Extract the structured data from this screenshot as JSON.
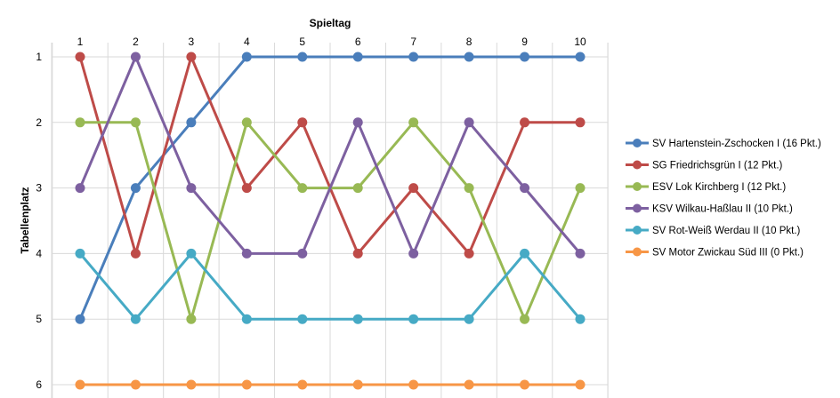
{
  "chart_data": {
    "type": "line",
    "xlabel": "Spieltag",
    "ylabel": "Tabellenplatz",
    "x": [
      1,
      2,
      3,
      4,
      5,
      6,
      7,
      8,
      9,
      10
    ],
    "xlim": [
      1,
      10
    ],
    "ylim": [
      1,
      6
    ],
    "y_reversed": true,
    "x_axis_position": "top",
    "grid": true,
    "legend_position": "right",
    "series": [
      {
        "name": "SV Hartenstein-Zschocken I (16 Pkt.)",
        "color": "#4A7EBB",
        "values": [
          5,
          3,
          2,
          1,
          1,
          1,
          1,
          1,
          1,
          1
        ]
      },
      {
        "name": "SG Friedrichsgrün I (12 Pkt.)",
        "color": "#BE4B48",
        "values": [
          1,
          4,
          1,
          3,
          2,
          4,
          3,
          4,
          2,
          2
        ]
      },
      {
        "name": "ESV Lok Kirchberg I (12 Pkt.)",
        "color": "#98B954",
        "values": [
          2,
          2,
          5,
          2,
          3,
          3,
          2,
          3,
          5,
          3
        ]
      },
      {
        "name": "KSV Wilkau-Haßlau II (10 Pkt.)",
        "color": "#7D60A0",
        "values": [
          3,
          1,
          3,
          4,
          4,
          2,
          4,
          2,
          3,
          4
        ]
      },
      {
        "name": "SV Rot-Weiß Werdau II (10 Pkt.)",
        "color": "#46AAC5",
        "values": [
          4,
          5,
          4,
          5,
          5,
          5,
          5,
          5,
          4,
          5
        ]
      },
      {
        "name": "SV Motor Zwickau Süd III (0 Pkt.)",
        "color": "#F79646",
        "values": [
          6,
          6,
          6,
          6,
          6,
          6,
          6,
          6,
          6,
          6
        ]
      }
    ]
  }
}
